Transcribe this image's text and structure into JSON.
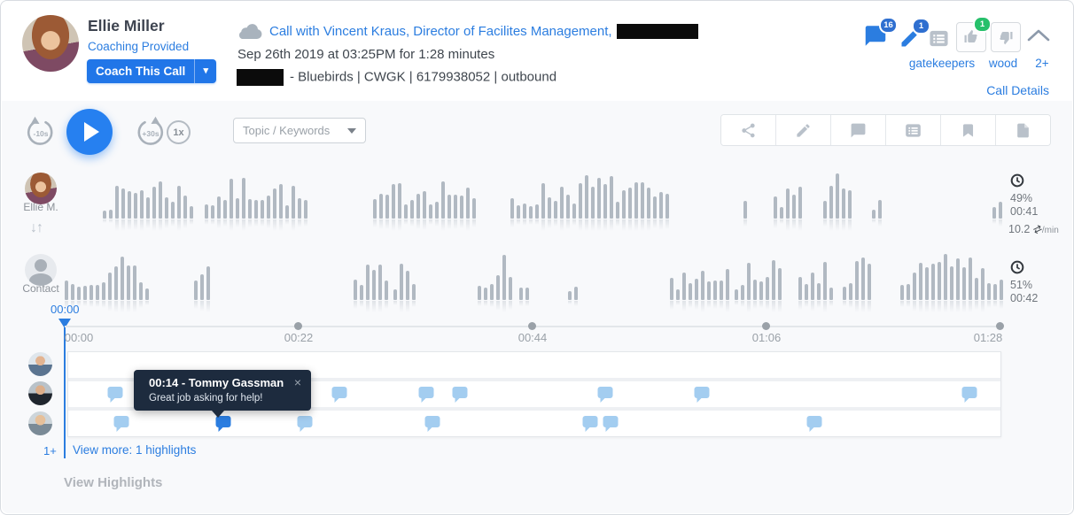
{
  "header": {
    "user": {
      "name": "Ellie Miller",
      "status_link": "Coaching Provided",
      "coach_button_label": "Coach This Call"
    },
    "call": {
      "title": "Call with Vincent Kraus, Director of Facilites Management,",
      "datetime_line": "Sep 26th 2019 at 03:25PM for 1:28 minutes",
      "meta_line": "- Bluebirds | CWGK | 6179938052 | outbound"
    },
    "actions": {
      "comment_badge": "16",
      "annotation_badge": "1",
      "like_badge": "1",
      "tags": [
        "gatekeepers",
        "wood",
        "2+"
      ],
      "call_details_link": "Call Details"
    }
  },
  "player": {
    "rewind_label": "-10s",
    "forward_label": "+30s",
    "speed_label": "1x",
    "topic_dropdown_placeholder": "Topic / Keywords"
  },
  "speakers": [
    {
      "name": "Ellie M.",
      "talk_pct": "49%",
      "talk_time": "00:41"
    },
    {
      "name": "Contact",
      "talk_pct": "51%",
      "talk_time": "00:42"
    }
  ],
  "stats": {
    "switch_rate": "10.2",
    "switch_unit": "/min"
  },
  "timeline": {
    "current_time": "00:00",
    "ticks": [
      "00:00",
      "00:22",
      "00:44",
      "01:06",
      "01:28"
    ]
  },
  "comments": {
    "rows": [
      {
        "bubbles": []
      },
      {
        "bubbles": [
          {
            "x": 0.05
          },
          {
            "x": 0.291
          },
          {
            "x": 0.384
          },
          {
            "x": 0.42
          },
          {
            "x": 0.576
          },
          {
            "x": 0.68
          },
          {
            "x": 0.967
          }
        ]
      },
      {
        "bubbles": [
          {
            "x": 0.057
          },
          {
            "x": 0.166,
            "selected": true
          },
          {
            "x": 0.254
          },
          {
            "x": 0.391
          },
          {
            "x": 0.56
          },
          {
            "x": 0.582
          },
          {
            "x": 0.8
          }
        ]
      }
    ],
    "tooltip": {
      "title": "00:14 - Tommy Gassman",
      "body": "Great job asking for help!",
      "close": "×"
    },
    "more_avatars": "1+",
    "view_more": "View more: 1 highlights"
  },
  "footer": {
    "view_highlights": "View Highlights"
  },
  "waveform": {
    "bar_color": "#b1b9c2",
    "speaker1_segments": [
      [
        0.041,
        0.142
      ],
      [
        0.149,
        0.258
      ],
      [
        0.329,
        0.442
      ],
      [
        0.475,
        0.646
      ],
      [
        0.724,
        0.733
      ],
      [
        0.756,
        0.79
      ],
      [
        0.809,
        0.839
      ],
      [
        0.861,
        0.872
      ],
      [
        0.99,
        1.0
      ]
    ],
    "speaker2_segments": [
      [
        0.0,
        0.091
      ],
      [
        0.138,
        0.159
      ],
      [
        0.308,
        0.346
      ],
      [
        0.351,
        0.378
      ],
      [
        0.44,
        0.482
      ],
      [
        0.485,
        0.496
      ],
      [
        0.537,
        0.548
      ],
      [
        0.646,
        0.712
      ],
      [
        0.715,
        0.766
      ],
      [
        0.783,
        0.819
      ],
      [
        0.83,
        0.861
      ],
      [
        0.891,
        1.0
      ]
    ]
  },
  "colors": {
    "accent": "#2b7de0",
    "bubble": "#a3cdf0",
    "bubble_selected": "#2b7de0",
    "tooltip_bg": "#1d2b3e",
    "waveform_bar": "#b1b9c2",
    "badge_green": "#27c06b"
  }
}
